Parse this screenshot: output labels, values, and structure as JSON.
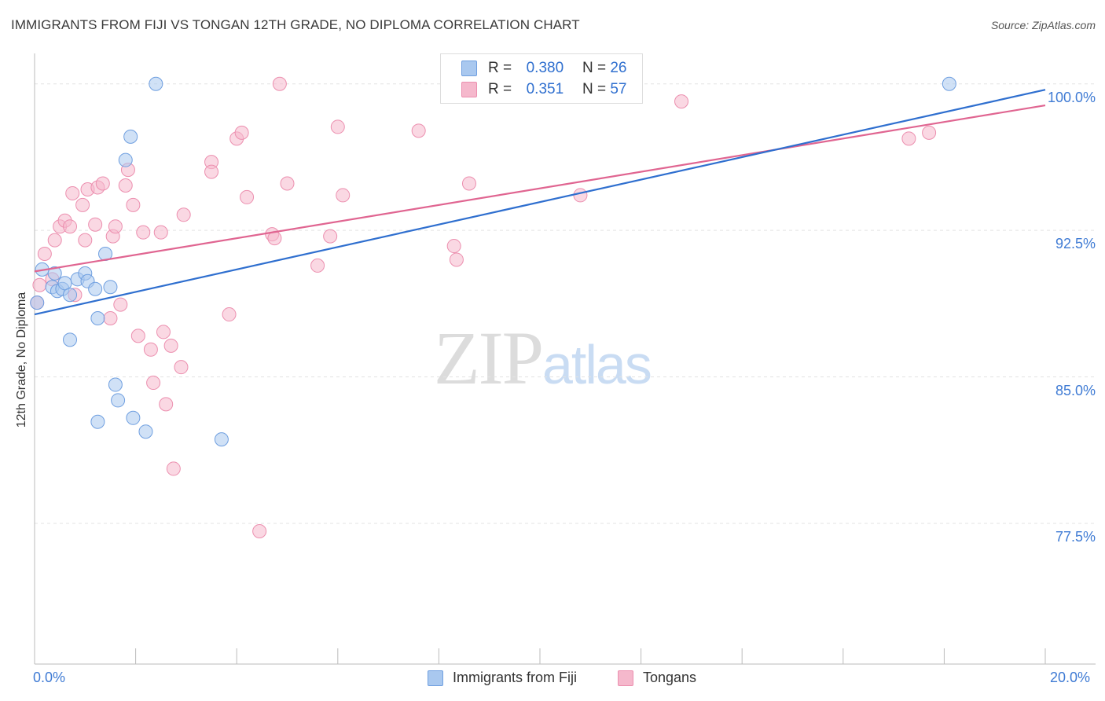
{
  "title": "IMMIGRANTS FROM FIJI VS TONGAN 12TH GRADE, NO DIPLOMA CORRELATION CHART",
  "source": "Source: ZipAtlas.com",
  "watermark": {
    "zip": "ZIP",
    "atlas": "atlas"
  },
  "legend": {
    "r_label": "R =",
    "n_label": "N =",
    "rows": [
      {
        "r": "0.380",
        "n": "26",
        "color": "#a9c8ef"
      },
      {
        "r": "0.351",
        "n": "57",
        "color": "#f5b8cc"
      }
    ]
  },
  "bottom_legend": [
    {
      "label": "Immigrants from Fiji",
      "color": "#a9c8ef"
    },
    {
      "label": "Tongans",
      "color": "#f5b8cc"
    }
  ],
  "colors": {
    "fiji_fill": "#a9c8ef",
    "fiji_stroke": "#6f9fe0",
    "fiji_line": "#2f6fcf",
    "tongan_fill": "#f5b8cc",
    "tongan_stroke": "#ec8faf",
    "tongan_line": "#e06591",
    "axis_label": "#3f7bd4",
    "grid": "#e3e3e3"
  },
  "chart_data": {
    "type": "scatter",
    "title": "IMMIGRANTS FROM FIJI VS TONGAN 12TH GRADE, NO DIPLOMA CORRELATION CHART",
    "xlabel": "",
    "ylabel": "12th Grade, No Diploma",
    "xlim": [
      0,
      20
    ],
    "ylim": [
      70.3,
      101.8
    ],
    "x_tick_labels": [
      "0.0%",
      "20.0%"
    ],
    "y_ticks": [
      77.5,
      85.0,
      92.5,
      100.0
    ],
    "y_tick_labels": [
      "77.5%",
      "85.0%",
      "92.5%",
      "100.0%"
    ],
    "grid": true,
    "legend_position": "top-center",
    "series": [
      {
        "name": "Immigrants from Fiji",
        "points": [
          [
            0.05,
            88.8
          ],
          [
            0.15,
            90.5
          ],
          [
            0.35,
            89.6
          ],
          [
            0.4,
            90.3
          ],
          [
            0.45,
            89.4
          ],
          [
            0.55,
            89.5
          ],
          [
            0.6,
            89.8
          ],
          [
            0.7,
            89.2
          ],
          [
            0.7,
            86.9
          ],
          [
            0.85,
            90.0
          ],
          [
            1.0,
            90.3
          ],
          [
            1.05,
            89.9
          ],
          [
            1.2,
            89.5
          ],
          [
            1.25,
            88.0
          ],
          [
            1.25,
            82.7
          ],
          [
            1.4,
            91.3
          ],
          [
            1.5,
            89.6
          ],
          [
            1.6,
            84.6
          ],
          [
            1.65,
            83.8
          ],
          [
            1.8,
            96.1
          ],
          [
            1.9,
            97.3
          ],
          [
            1.95,
            82.9
          ],
          [
            2.2,
            82.2
          ],
          [
            2.4,
            100.0
          ],
          [
            3.7,
            81.8
          ],
          [
            18.1,
            100.0
          ]
        ],
        "trend": {
          "x": [
            0,
            20
          ],
          "y": [
            88.2,
            99.7
          ]
        }
      },
      {
        "name": "Tongans",
        "points": [
          [
            0.05,
            88.8
          ],
          [
            0.1,
            89.7
          ],
          [
            0.2,
            91.3
          ],
          [
            0.35,
            90.0
          ],
          [
            0.4,
            92.0
          ],
          [
            0.5,
            92.7
          ],
          [
            0.6,
            93.0
          ],
          [
            0.7,
            92.7
          ],
          [
            0.75,
            94.4
          ],
          [
            0.8,
            89.2
          ],
          [
            0.95,
            93.8
          ],
          [
            1.0,
            92.0
          ],
          [
            1.05,
            94.6
          ],
          [
            1.2,
            92.8
          ],
          [
            1.25,
            94.7
          ],
          [
            1.35,
            94.9
          ],
          [
            1.5,
            88.0
          ],
          [
            1.55,
            92.2
          ],
          [
            1.6,
            92.7
          ],
          [
            1.7,
            88.7
          ],
          [
            1.8,
            94.8
          ],
          [
            1.85,
            95.6
          ],
          [
            1.95,
            93.8
          ],
          [
            2.05,
            87.1
          ],
          [
            2.15,
            92.4
          ],
          [
            2.3,
            86.4
          ],
          [
            2.35,
            84.7
          ],
          [
            2.5,
            92.4
          ],
          [
            2.55,
            87.3
          ],
          [
            2.6,
            83.6
          ],
          [
            2.7,
            86.6
          ],
          [
            2.75,
            80.3
          ],
          [
            2.9,
            85.5
          ],
          [
            2.95,
            93.3
          ],
          [
            3.5,
            96.0
          ],
          [
            3.5,
            95.5
          ],
          [
            3.85,
            88.2
          ],
          [
            4.0,
            97.2
          ],
          [
            4.1,
            97.5
          ],
          [
            4.2,
            94.2
          ],
          [
            4.45,
            77.1
          ],
          [
            4.7,
            92.3
          ],
          [
            4.75,
            92.1
          ],
          [
            4.85,
            100.0
          ],
          [
            5.0,
            94.9
          ],
          [
            5.6,
            90.7
          ],
          [
            5.85,
            92.2
          ],
          [
            6.0,
            97.8
          ],
          [
            6.1,
            94.3
          ],
          [
            7.6,
            97.6
          ],
          [
            8.3,
            91.7
          ],
          [
            8.35,
            91.0
          ],
          [
            8.6,
            94.9
          ],
          [
            10.8,
            94.3
          ],
          [
            12.8,
            99.1
          ],
          [
            17.3,
            97.2
          ],
          [
            17.7,
            97.5
          ]
        ],
        "trend": {
          "x": [
            0,
            20
          ],
          "y": [
            90.4,
            98.9
          ]
        }
      }
    ]
  }
}
